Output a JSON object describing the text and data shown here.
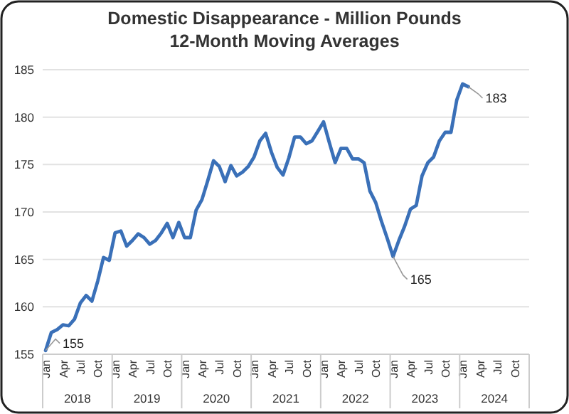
{
  "chart_data": {
    "type": "line",
    "title": "Domestic Disappearance - Million Pounds\n12-Month Moving Averages",
    "categories": [
      "Jan",
      null,
      null,
      "Apr",
      null,
      null,
      "Jul",
      null,
      null,
      "Oct",
      null,
      null,
      "Jan",
      null,
      null,
      "Apr",
      null,
      null,
      "Jul",
      null,
      null,
      "Oct",
      null,
      null,
      "Jan",
      null,
      null,
      "Apr",
      null,
      null,
      "Jul",
      null,
      null,
      "Oct",
      null,
      null,
      "Jan",
      null,
      null,
      "Apr",
      null,
      null,
      "Jul",
      null,
      null,
      "Oct",
      null,
      null,
      "Jan",
      null,
      null,
      "Apr",
      null,
      null,
      "Jul",
      null,
      null,
      "Oct",
      null,
      null,
      "Jan",
      null,
      null,
      "Apr",
      null,
      null,
      "Jul",
      null,
      null,
      "Oct",
      null,
      null,
      "Jan",
      null,
      null,
      "Apr",
      null,
      null,
      "Jul",
      null,
      null,
      "Oct",
      null,
      null
    ],
    "series": [
      {
        "color": "#3a70b8",
        "values": [
          155.4,
          157.3,
          157.6,
          158.1,
          158.0,
          158.7,
          160.4,
          161.2,
          160.6,
          162.7,
          165.2,
          164.9,
          167.8,
          168.0,
          166.4,
          167.0,
          167.7,
          167.3,
          166.6,
          167.0,
          167.8,
          168.8,
          167.3,
          168.9,
          167.3,
          167.3,
          170.2,
          171.3,
          173.3,
          175.4,
          174.8,
          173.2,
          174.9,
          173.8,
          174.2,
          174.8,
          175.8,
          177.5,
          178.3,
          176.3,
          174.7,
          173.9,
          175.7,
          177.9,
          177.9,
          177.2,
          177.5,
          178.5,
          179.5,
          177.3,
          175.2,
          176.7,
          176.7,
          175.6,
          175.6,
          175.2,
          172.2,
          171.0,
          169.0,
          167.2,
          165.3,
          167.0,
          168.5,
          170.3,
          170.7,
          173.8,
          175.2,
          175.8,
          177.5,
          178.4,
          178.4,
          181.8,
          183.5,
          183.2,
          null,
          null,
          null,
          null,
          null,
          null,
          null,
          null,
          null,
          null
        ],
        "value_labels": [
          "155",
          null,
          null,
          null,
          null,
          null,
          null,
          null,
          null,
          null,
          null,
          null,
          null,
          null,
          null,
          null,
          null,
          null,
          null,
          null,
          null,
          null,
          null,
          null,
          null,
          null,
          null,
          null,
          null,
          null,
          null,
          null,
          null,
          null,
          null,
          null,
          null,
          null,
          null,
          null,
          null,
          null,
          null,
          null,
          null,
          null,
          null,
          null,
          null,
          null,
          null,
          null,
          null,
          null,
          null,
          null,
          null,
          null,
          null,
          null,
          "165",
          null,
          null,
          null,
          null,
          null,
          null,
          null,
          null,
          null,
          null,
          null,
          null,
          "183",
          null,
          null,
          null,
          null,
          null,
          null,
          null,
          null,
          null,
          null
        ]
      }
    ],
    "ylim": [
      155,
      185
    ],
    "yticks": [
      155,
      160,
      165,
      170,
      175,
      180,
      185
    ],
    "grid": "y",
    "annotations": [
      "2018",
      "2019",
      "2020",
      "2021",
      "2022",
      "2023",
      "2024"
    ]
  }
}
